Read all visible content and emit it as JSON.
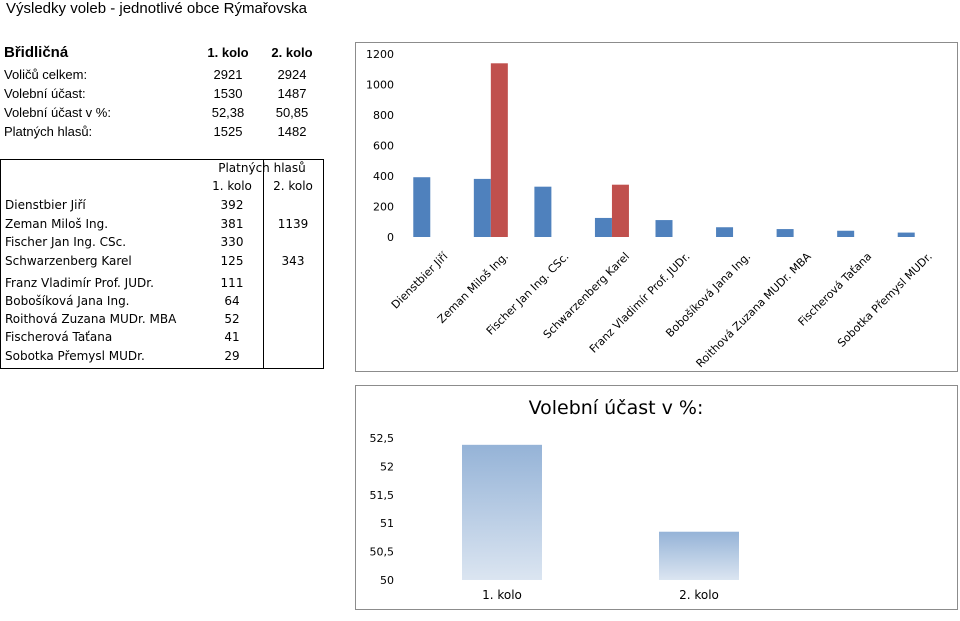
{
  "page_title": "Výsledky voleb - jednotlivé obce Rýmařovska",
  "municipality": "Břidličná",
  "round_headers": [
    "1. kolo",
    "2. kolo"
  ],
  "stats": [
    {
      "label": "Voličů celkem:",
      "round1": "2921",
      "round2": "2924"
    },
    {
      "label": "Volební účast:",
      "round1": "1530",
      "round2": "1487"
    },
    {
      "label": "Volební účast v %:",
      "round1": "52,38",
      "round2": "50,85"
    },
    {
      "label": "Platných hlasů:",
      "round1": "1525",
      "round2": "1482"
    }
  ],
  "candidate_table": {
    "header": "Platných hlasů",
    "round_headers": [
      "1. kolo",
      "2. kolo"
    ],
    "rows": [
      {
        "name": "Dienstbier Jiří",
        "round1": "392",
        "round2": ""
      },
      {
        "name": "Zeman Miloš Ing.",
        "round1": "381",
        "round2": "1139"
      },
      {
        "name": "Fischer Jan Ing. CSc.",
        "round1": "330",
        "round2": ""
      },
      {
        "name": "Schwarzenberg Karel",
        "round1": "125",
        "round2": "343"
      },
      {
        "name": "Franz Vladimír Prof. JUDr.",
        "round1": "111",
        "round2": ""
      },
      {
        "name": "Bobošíková Jana Ing.",
        "round1": "64",
        "round2": ""
      },
      {
        "name": "Roithová Zuzana MUDr. MBA",
        "round1": "52",
        "round2": ""
      },
      {
        "name": "Fischerová Taťana",
        "round1": "41",
        "round2": ""
      },
      {
        "name": "Sobotka Přemysl MUDr.",
        "round1": "29",
        "round2": ""
      }
    ]
  },
  "chart_data": [
    {
      "type": "bar",
      "title": "",
      "categories": [
        "Dienstbier Jiří",
        "Zeman Miloš Ing.",
        "Fischer Jan Ing. CSc.",
        "Schwarzenberg Karel",
        "Franz Vladimír Prof. JUDr.",
        "Bobošíková Jana Ing.",
        "Roithová Zuzana MUDr. MBA",
        "Fischerová Taťana",
        "Sobotka Přemysl MUDr."
      ],
      "series": [
        {
          "values": [
            392,
            381,
            330,
            125,
            111,
            64,
            52,
            41,
            29
          ],
          "color": "#4f81bd"
        },
        {
          "values": [
            null,
            1139,
            null,
            343,
            null,
            null,
            null,
            null,
            null
          ],
          "color": "#c0504d"
        }
      ],
      "ylim": [
        0,
        1200
      ],
      "yticks": [
        "0",
        "200",
        "400",
        "600",
        "800",
        "1000",
        "1200"
      ],
      "grid": false,
      "legend": "none"
    },
    {
      "type": "bar",
      "title": "Volební účast v %:",
      "categories": [
        "1. kolo",
        "2. kolo"
      ],
      "values": [
        52.38,
        50.85
      ],
      "ylim": [
        50,
        52.5
      ],
      "yticks": [
        "50",
        "50,5",
        "51",
        "51,5",
        "52",
        "52,5"
      ],
      "color": "#95b3d7",
      "grid": false,
      "legend": "none"
    }
  ]
}
